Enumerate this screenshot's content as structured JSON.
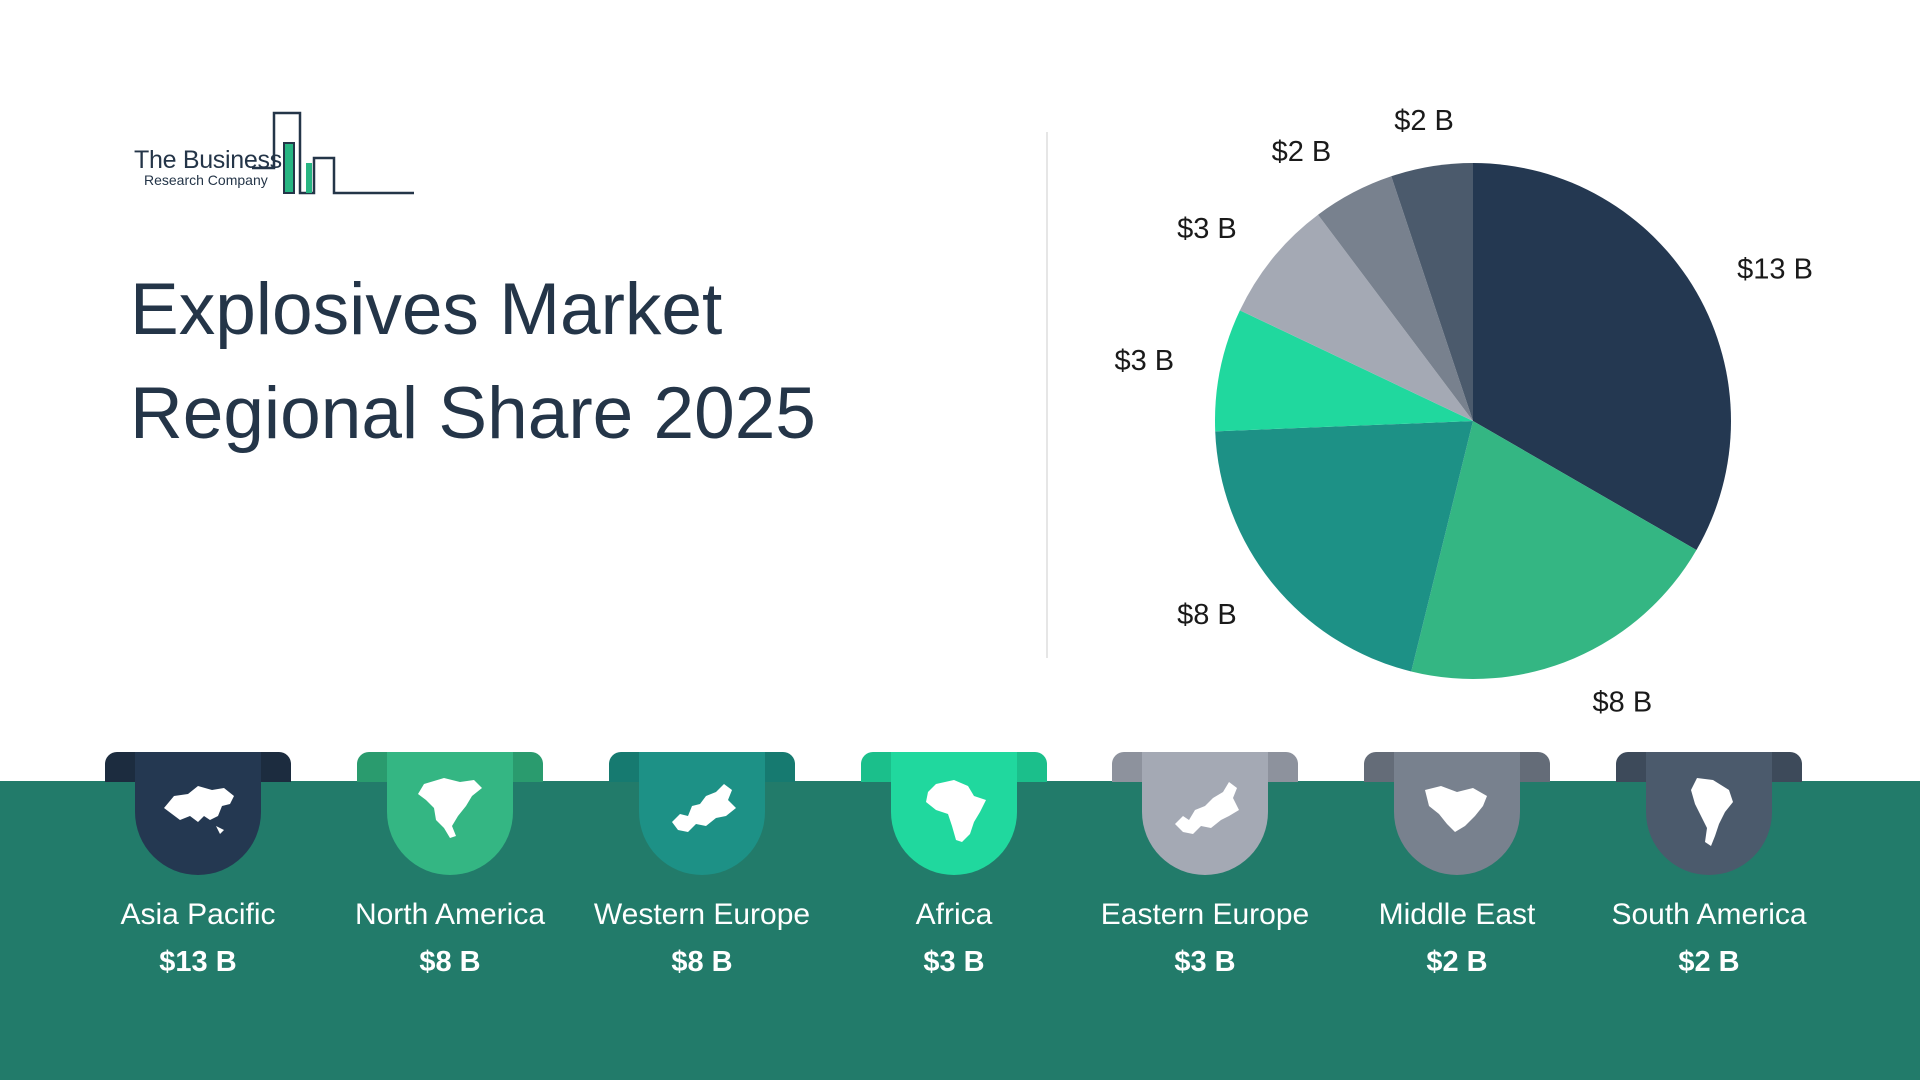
{
  "logo": {
    "line1": "The Business",
    "line2": "Research Company"
  },
  "title": {
    "line1": "Explosives Market",
    "line2": "Regional Share 2025"
  },
  "chart_data": {
    "type": "pie",
    "categories": [
      "Asia Pacific",
      "North America",
      "Western Europe",
      "Africa",
      "Eastern Europe",
      "Middle East",
      "South America"
    ],
    "values": [
      13,
      8,
      8,
      3,
      3,
      2,
      2
    ],
    "labels": [
      "$13 B",
      "$8 B",
      "$8 B",
      "$3 B",
      "$3 B",
      "$2 B",
      "$2 B"
    ],
    "colors": [
      "#243851",
      "#34b683",
      "#1d9186",
      "#20d89e",
      "#a4a9b4",
      "#78818e",
      "#4b5a6c"
    ],
    "start": "12 o'clock, clockwise"
  },
  "regions": [
    {
      "name": "Asia Pacific",
      "value": "$13 B",
      "color": "#243851",
      "tab_color": "#1c2c3f",
      "icon": "asia-map-icon"
    },
    {
      "name": "North America",
      "value": "$8 B",
      "color": "#34b683",
      "tab_color": "#2a9b6e",
      "icon": "north-america-map-icon"
    },
    {
      "name": "Western Europe",
      "value": "$8 B",
      "color": "#1d9186",
      "tab_color": "#167a70",
      "icon": "western-europe-map-icon"
    },
    {
      "name": "Africa",
      "value": "$3 B",
      "color": "#20d89e",
      "tab_color": "#1bbf8b",
      "icon": "africa-map-icon"
    },
    {
      "name": "Eastern Europe",
      "value": "$3 B",
      "color": "#a4a9b4",
      "tab_color": "#8d929d",
      "icon": "eastern-europe-map-icon"
    },
    {
      "name": "Middle East",
      "value": "$2 B",
      "color": "#78818e",
      "tab_color": "#646c78",
      "icon": "middle-east-map-icon"
    },
    {
      "name": "South America",
      "value": "$2 B",
      "color": "#4b5a6c",
      "tab_color": "#3d4a5a",
      "icon": "south-america-map-icon"
    }
  ]
}
